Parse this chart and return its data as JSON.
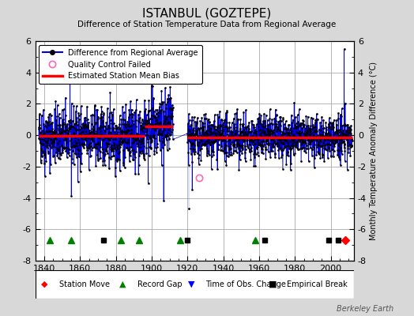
{
  "title": "ISTANBUL (GOZTEPE)",
  "subtitle": "Difference of Station Temperature Data from Regional Average",
  "ylabel": "Monthly Temperature Anomaly Difference (°C)",
  "xlabel_ticks": [
    1840,
    1860,
    1880,
    1900,
    1920,
    1940,
    1960,
    1980,
    2000
  ],
  "xlim": [
    1835,
    2013
  ],
  "ylim": [
    -8,
    6
  ],
  "yticks": [
    -8,
    -6,
    -4,
    -2,
    0,
    2,
    4,
    6
  ],
  "bg_color": "#d8d8d8",
  "plot_bg_color": "#ffffff",
  "seed": 42,
  "segment1_start": 1837,
  "segment1_end": 1896,
  "segment1_bias": -0.05,
  "segment2_start": 1896,
  "segment2_end": 1912,
  "segment2_bias": 0.55,
  "segment3_start": 1912,
  "segment3_end": 1920,
  "segment3_bias": -0.35,
  "segment4_start": 1920,
  "segment4_end": 2012,
  "segment4_bias": -0.15,
  "qc_time": 1926.5,
  "qc_val": -2.7,
  "station_moves": [
    2008
  ],
  "record_gaps": [
    1843,
    1855,
    1883,
    1893,
    1916,
    1958
  ],
  "obs_changes": [],
  "empirical_breaks": [
    1873,
    1920,
    1963,
    1999,
    2004
  ],
  "watermark": "Berkeley Earth",
  "line_color": "#0000dd",
  "marker_color": "#000000",
  "stem_color": "#4466cc"
}
